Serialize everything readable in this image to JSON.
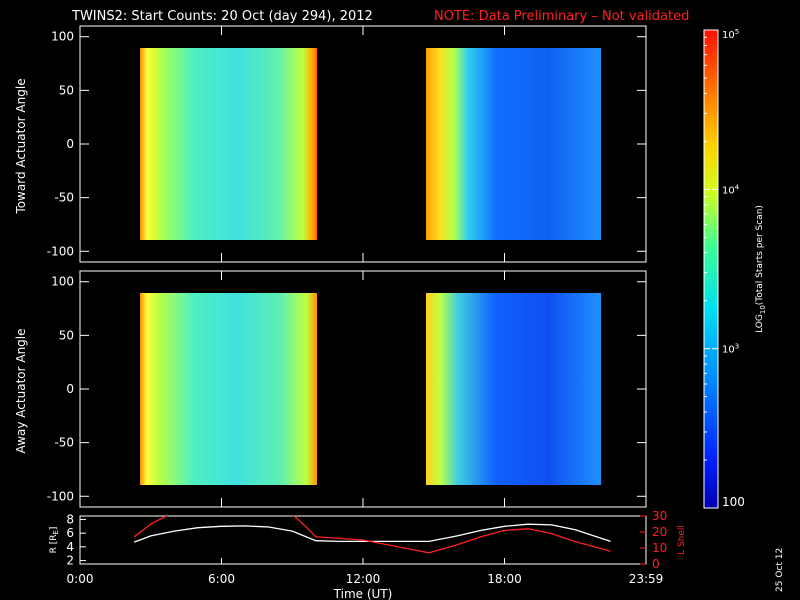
{
  "title": "TWINS2: Start Counts: 20 Oct (day 294), 2012",
  "note": "NOTE: Data Preliminary – Not validated",
  "date_stamp": "25 Oct 12",
  "colorbar": {
    "label_prefix": "LOG",
    "label_sub": "10",
    "label_suffix": "(Total Starts per Scan)",
    "scale": "log",
    "min": 100,
    "max": 100000,
    "ticks": [
      {
        "base": "10",
        "exp": "5"
      },
      {
        "base": "10",
        "exp": "4"
      },
      {
        "base": "10",
        "exp": "3"
      },
      {
        "text": "100"
      }
    ]
  },
  "chart_data": [
    {
      "type": "heatmap",
      "ylabel": "Toward Actuator Angle",
      "ylim": [
        -110,
        110
      ],
      "yticks": [
        "100",
        "50",
        "0",
        "-50",
        "-100"
      ],
      "xlim": [
        0,
        24
      ],
      "data_blocks": [
        {
          "x_start_hours": 2.1,
          "x_end_hours": 10.0,
          "y_range": [
            -90,
            90
          ],
          "dominant_level": "high, yellow-orange edges, cyan-green interior"
        },
        {
          "x_start_hours": 14.8,
          "x_end_hours": 22.5,
          "y_range": [
            -90,
            90
          ],
          "dominant_level": "yellow-orange start, blue interior"
        }
      ]
    },
    {
      "type": "heatmap",
      "ylabel": "Away Actuator Angle",
      "ylim": [
        -110,
        110
      ],
      "yticks": [
        "100",
        "50",
        "0",
        "-50",
        "-100"
      ],
      "xlim": [
        0,
        24
      ],
      "data_blocks": [
        {
          "x_start_hours": 2.1,
          "x_end_hours": 10.0,
          "y_range": [
            -90,
            90
          ],
          "dominant_level": "high, orange top edge, cyan-green interior"
        },
        {
          "x_start_hours": 14.8,
          "x_end_hours": 22.5,
          "y_range": [
            -90,
            90
          ],
          "dominant_level": "yellow start, blue interior"
        }
      ]
    },
    {
      "type": "line",
      "ylabel_left": "R [R",
      "ylabel_left_sub": "E",
      "ylabel_left_close": "]",
      "ylabel_right": "L Shell",
      "yticks_left": [
        "8",
        "6",
        "4",
        "2"
      ],
      "ylim_left": [
        1.5,
        8.5
      ],
      "yticks_right": [
        "30",
        "20",
        "10",
        "0"
      ],
      "ylim_right": [
        0,
        30
      ],
      "xlabel": "Time (UT)",
      "xticks": [
        "0:00",
        "6:00",
        "12:00",
        "18:00",
        "23:59"
      ],
      "xlim": [
        0,
        24
      ],
      "series": [
        {
          "axis": "left",
          "color": "#ffffff",
          "x": [
            2.3,
            3.0,
            4.0,
            5.0,
            6.0,
            7.0,
            8.0,
            9.0,
            10.0,
            11.0,
            12.0,
            13.0,
            14.0,
            14.8,
            16.0,
            17.0,
            18.0,
            19.0,
            20.0,
            21.0,
            22.5
          ],
          "y": [
            4.7,
            5.6,
            6.3,
            6.8,
            7.0,
            7.05,
            6.9,
            6.3,
            4.9,
            4.8,
            4.8,
            4.8,
            4.8,
            4.8,
            5.6,
            6.4,
            7.0,
            7.3,
            7.2,
            6.5,
            4.8
          ]
        },
        {
          "axis": "right",
          "color": "#ff2020",
          "x": [
            2.3,
            3.0,
            3.8,
            9.0,
            9.6,
            10.0,
            12.0,
            14.8,
            16.0,
            17.0,
            18.0,
            19.0,
            20.0,
            21.0,
            22.5
          ],
          "y": [
            17,
            25,
            31,
            31,
            23,
            17,
            15,
            7,
            12,
            17,
            21,
            22,
            19,
            14,
            8
          ]
        }
      ]
    }
  ]
}
